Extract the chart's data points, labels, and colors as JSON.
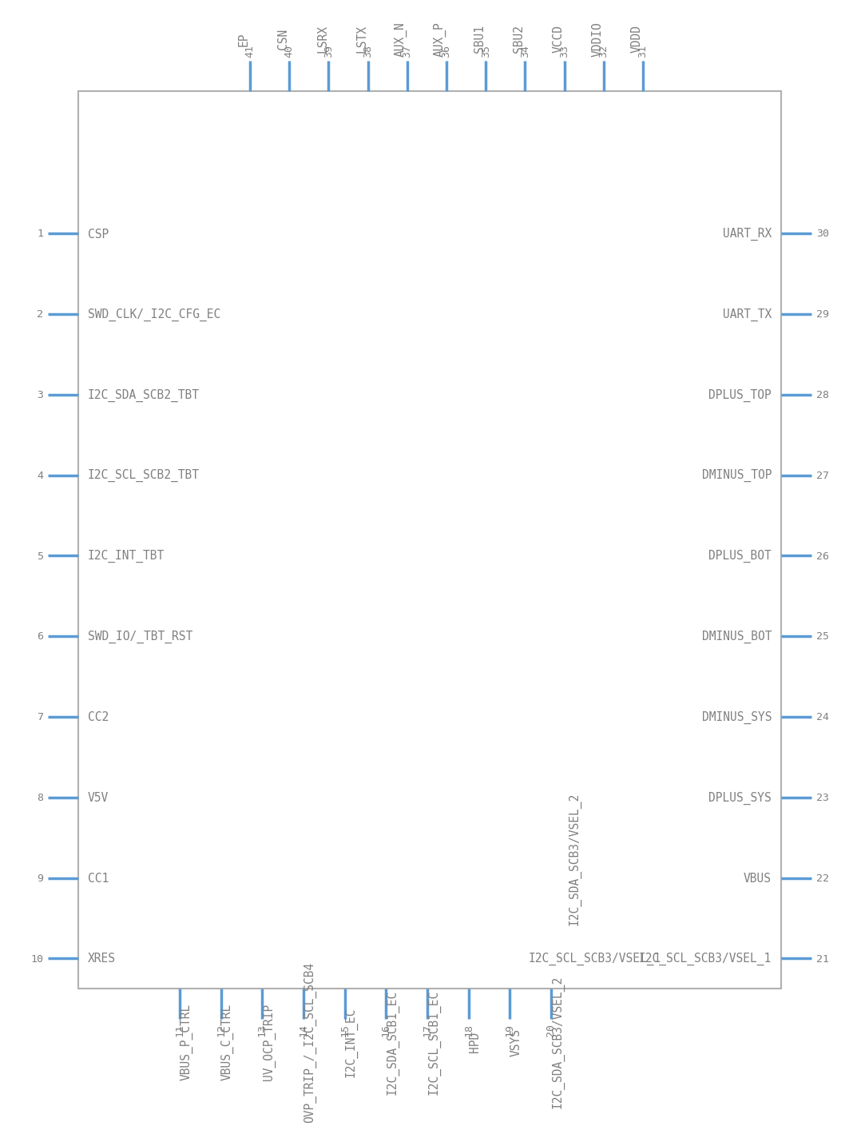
{
  "pin_color": "#5b9bd5",
  "text_color": "#808080",
  "box_color": "#b0b0b0",
  "bg_color": "#ffffff",
  "left_pins": [
    {
      "num": "1",
      "name": "CSP"
    },
    {
      "num": "2",
      "name": "SWD_CLK/_I2C_CFG_EC"
    },
    {
      "num": "3",
      "name": "I2C_SDA_SCB2_TBT"
    },
    {
      "num": "4",
      "name": "I2C_SCL_SCB2_TBT"
    },
    {
      "num": "5",
      "name": "I2C_INT_TBT"
    },
    {
      "num": "6",
      "name": "SWD_IO/_TBT_RST"
    },
    {
      "num": "7",
      "name": "CC2"
    },
    {
      "num": "8",
      "name": "V5V"
    },
    {
      "num": "9",
      "name": "CC1"
    },
    {
      "num": "10",
      "name": "XRES"
    }
  ],
  "right_pins": [
    {
      "num": "30",
      "name": "UART_RX"
    },
    {
      "num": "29",
      "name": "UART_TX"
    },
    {
      "num": "28",
      "name": "DPLUS_TOP"
    },
    {
      "num": "27",
      "name": "DMINUS_TOP"
    },
    {
      "num": "26",
      "name": "DPLUS_BOT"
    },
    {
      "num": "25",
      "name": "DMINUS_BOT"
    },
    {
      "num": "24",
      "name": "DMINUS_SYS"
    },
    {
      "num": "23",
      "name": "DPLUS_SYS"
    },
    {
      "num": "22",
      "name": "VBUS"
    },
    {
      "num": "21",
      "name": "I2C_SCL_SCB3/VSEL_1"
    }
  ],
  "top_pins": [
    {
      "num": "41",
      "name": "EP"
    },
    {
      "num": "40",
      "name": "CSN"
    },
    {
      "num": "39",
      "name": "LSRX"
    },
    {
      "num": "38",
      "name": "LSTX"
    },
    {
      "num": "37",
      "name": "AUX_N"
    },
    {
      "num": "36",
      "name": "AUX_P"
    },
    {
      "num": "35",
      "name": "SBU1"
    },
    {
      "num": "34",
      "name": "SBU2"
    },
    {
      "num": "33",
      "name": "VCCD"
    },
    {
      "num": "32",
      "name": "VDDIO"
    },
    {
      "num": "31",
      "name": "VDDD"
    }
  ],
  "bottom_pins": [
    {
      "num": "11",
      "name": "VBUS_P_CTRL"
    },
    {
      "num": "12",
      "name": "VBUS_C_CTRL"
    },
    {
      "num": "13",
      "name": "UV_OCP_TRIP"
    },
    {
      "num": "14",
      "name": "OVP_TRIP_/_I2C_SCL_SCB4"
    },
    {
      "num": "15",
      "name": "I2C_INT_EC"
    },
    {
      "num": "16",
      "name": "I2C_SDA_SCB1_EC"
    },
    {
      "num": "17",
      "name": "I2C_SCL_SCB1_EC"
    },
    {
      "num": "18",
      "name": "HPD"
    },
    {
      "num": "19",
      "name": "VSYS"
    },
    {
      "num": "20",
      "name": "I2C_SDA_SCB3/VSEL_2"
    }
  ],
  "inside_label_1": "I2C_SCL_SCB3/VSEL_1",
  "inside_label_2": "I2C_SDA_SCB3/VSEL_2"
}
